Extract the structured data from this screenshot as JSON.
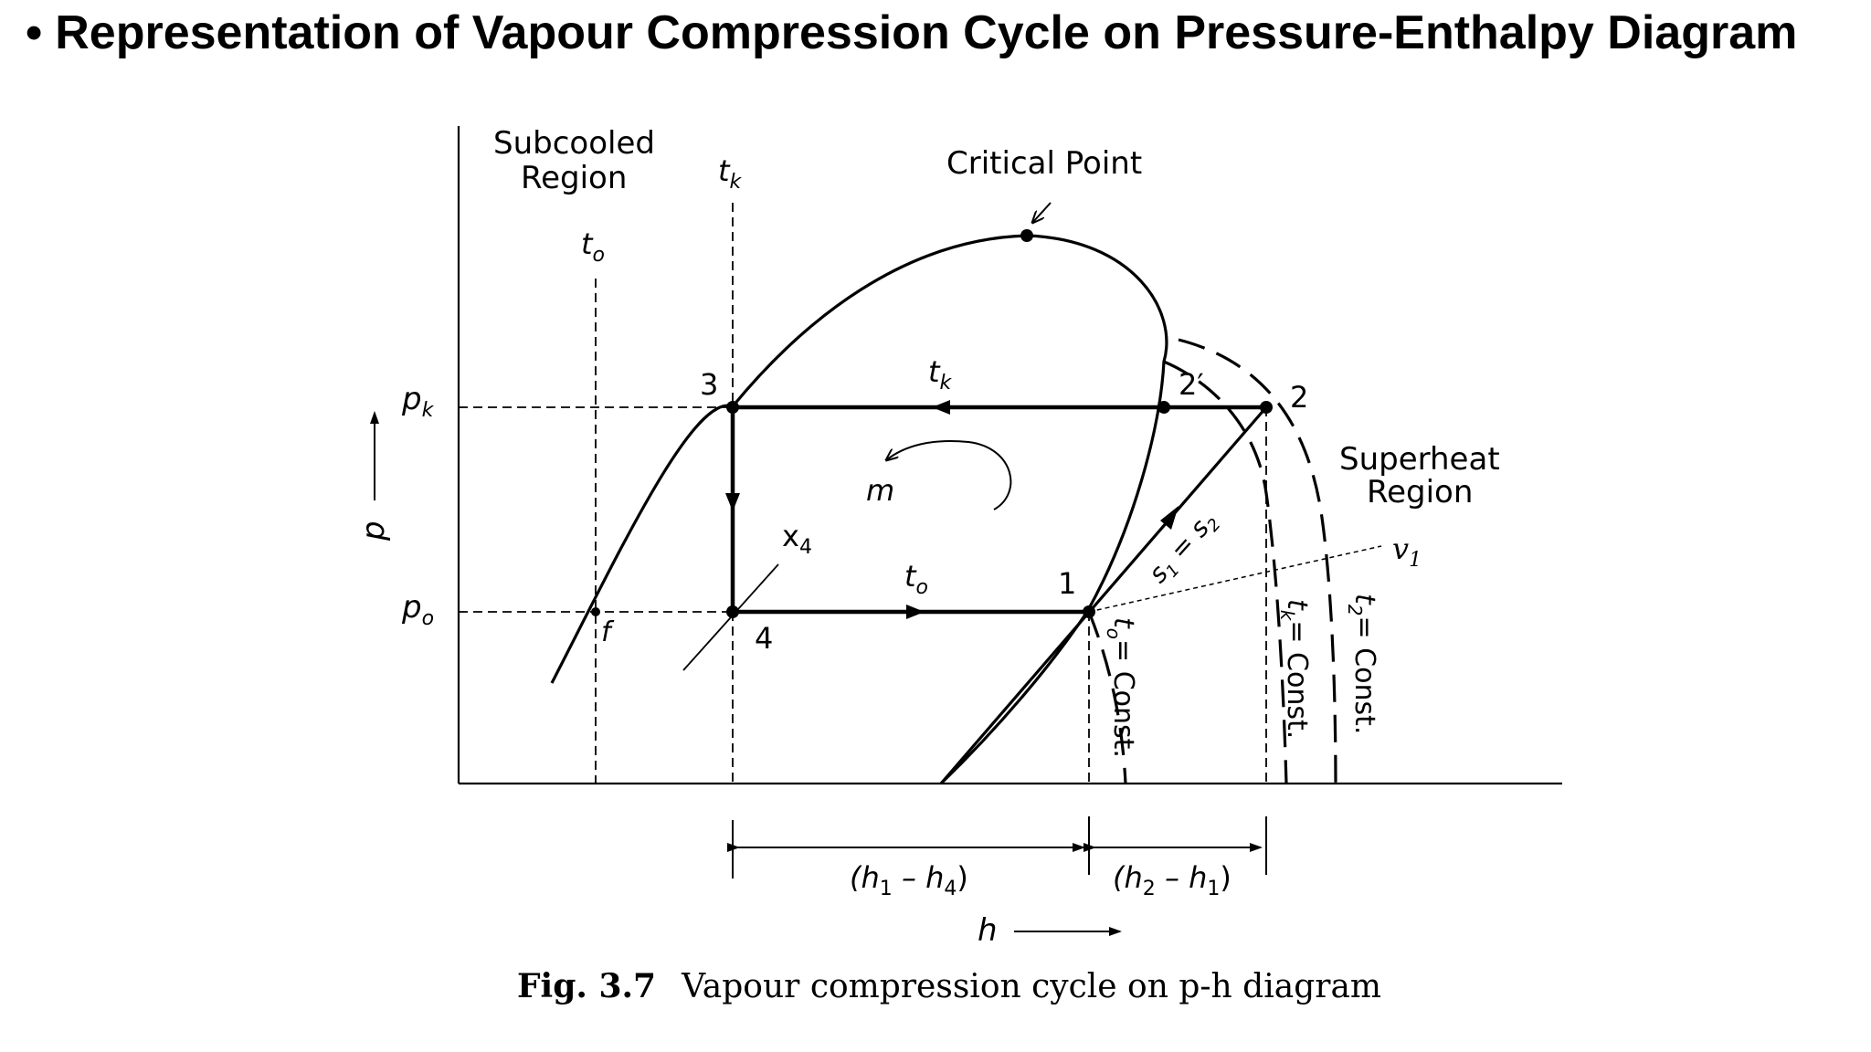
{
  "slide": {
    "title": "Representation of Vapour Compression Cycle on Pressure-Enthalpy Diagram"
  },
  "figure": {
    "caption_number": "Fig. 3.7",
    "caption_text": "Vapour compression cycle on p-h diagram",
    "axis_y_label": "p",
    "axis_x_label": "h",
    "regions": {
      "subcooled_line1": "Subcooled",
      "subcooled_line2": "Region",
      "superheat_line1": "Superheat",
      "superheat_line2": "Region",
      "critical_point": "Critical Point"
    },
    "pressure_labels": {
      "pk": "p",
      "pk_sub": "k",
      "po": "p",
      "po_sub": "o"
    },
    "points": {
      "p1": "1",
      "p2": "2",
      "p2prime": "2′",
      "p3": "3",
      "p4": "4",
      "f": "f"
    },
    "symbols": {
      "t": "t",
      "sub_k": "k",
      "sub_o": "o",
      "m": "m",
      "x4": "x",
      "x4_sub": "4",
      "v1": "v",
      "v1_sub": "1",
      "s_eq": "s",
      "s1_sub": "1",
      "s_eq_mid": " = s",
      "s2_sub": "2"
    },
    "constant_labels": {
      "to_const": "= Const.",
      "tk_const": "= Const.",
      "t2_const": "= Const.",
      "t2_sub": "2"
    },
    "enthalpy_diffs": {
      "h1_h4": "(h",
      "h1_h4_a": "1",
      "h1_h4_mid": " – h",
      "h1_h4_b": "4",
      "h1_h4_end": ")",
      "h2_h1": "(h",
      "h2_h1_a": "2",
      "h2_h1_mid": " – h",
      "h2_h1_b": "1",
      "h2_h1_end": ")"
    }
  }
}
